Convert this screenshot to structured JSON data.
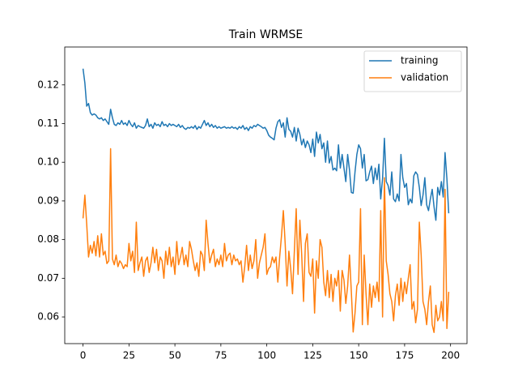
{
  "chart_data": {
    "type": "line",
    "title": "Train WRMSE",
    "x": [
      0,
      1,
      2,
      3,
      4,
      5,
      6,
      7,
      8,
      9,
      10,
      11,
      12,
      13,
      14,
      15,
      16,
      17,
      18,
      19,
      20,
      21,
      22,
      23,
      24,
      25,
      26,
      27,
      28,
      29,
      30,
      31,
      32,
      33,
      34,
      35,
      36,
      37,
      38,
      39,
      40,
      41,
      42,
      43,
      44,
      45,
      46,
      47,
      48,
      49,
      50,
      51,
      52,
      53,
      54,
      55,
      56,
      57,
      58,
      59,
      60,
      61,
      62,
      63,
      64,
      65,
      66,
      67,
      68,
      69,
      70,
      71,
      72,
      73,
      74,
      75,
      76,
      77,
      78,
      79,
      80,
      81,
      82,
      83,
      84,
      85,
      86,
      87,
      88,
      89,
      90,
      91,
      92,
      93,
      94,
      95,
      96,
      97,
      98,
      99,
      100,
      101,
      102,
      103,
      104,
      105,
      106,
      107,
      108,
      109,
      110,
      111,
      112,
      113,
      114,
      115,
      116,
      117,
      118,
      119,
      120,
      121,
      122,
      123,
      124,
      125,
      126,
      127,
      128,
      129,
      130,
      131,
      132,
      133,
      134,
      135,
      136,
      137,
      138,
      139,
      140,
      141,
      142,
      143,
      144,
      145,
      146,
      147,
      148,
      149,
      150,
      151,
      152,
      153,
      154,
      155,
      156,
      157,
      158,
      159,
      160,
      161,
      162,
      163,
      164,
      165,
      166,
      167,
      168,
      169,
      170,
      171,
      172,
      173,
      174,
      175,
      176,
      177,
      178,
      179,
      180,
      181,
      182,
      183,
      184,
      185,
      186,
      187,
      188,
      189,
      190,
      191,
      192,
      193,
      194,
      195,
      196,
      197,
      198,
      199
    ],
    "series": [
      {
        "name": "training",
        "color": "#1f77b4",
        "values": [
          0.1242,
          0.1205,
          0.1145,
          0.1152,
          0.1128,
          0.1122,
          0.1125,
          0.1122,
          0.1115,
          0.1112,
          0.1115,
          0.1108,
          0.1112,
          0.1105,
          0.1098,
          0.1137,
          0.1115,
          0.1098,
          0.1095,
          0.1102,
          0.1098,
          0.1108,
          0.1098,
          0.1102,
          0.1095,
          0.1108,
          0.1098,
          0.1092,
          0.1102,
          0.1088,
          0.1095,
          0.1092,
          0.109,
          0.1088,
          0.1095,
          0.1112,
          0.1092,
          0.1098,
          0.1088,
          0.1102,
          0.1095,
          0.1098,
          0.1092,
          0.1105,
          0.1095,
          0.1098,
          0.1092,
          0.11,
          0.1095,
          0.1098,
          0.1095,
          0.1092,
          0.1098,
          0.109,
          0.1095,
          0.1088,
          0.1085,
          0.109,
          0.1088,
          0.1092,
          0.1088,
          0.1095,
          0.1085,
          0.1092,
          0.1088,
          0.1098,
          0.1108,
          0.1095,
          0.1102,
          0.1092,
          0.1098,
          0.109,
          0.1095,
          0.1088,
          0.1092,
          0.1088,
          0.109,
          0.1092,
          0.1088,
          0.109,
          0.1088,
          0.1092,
          0.1088,
          0.109,
          0.1085,
          0.1092,
          0.1088,
          0.1095,
          0.1085,
          0.109,
          0.1082,
          0.1092,
          0.1088,
          0.1095,
          0.1092,
          0.1098,
          0.1095,
          0.1092,
          0.1088,
          0.109,
          0.1082,
          0.107,
          0.1065,
          0.1062,
          0.1058,
          0.1088,
          0.1105,
          0.111,
          0.109,
          0.1102,
          0.1065,
          0.1115,
          0.1085,
          0.108,
          0.1065,
          0.109,
          0.1055,
          0.1088,
          0.1072,
          0.1045,
          0.106,
          0.1038,
          0.1055,
          0.1045,
          0.1025,
          0.106,
          0.1015,
          0.1078,
          0.105,
          0.1072,
          0.1035,
          0.105,
          0.1,
          0.1055,
          0.0998,
          0.1015,
          0.098,
          0.0985,
          0.0978,
          0.1045,
          0.0985,
          0.102,
          0.0985,
          0.095,
          0.102,
          0.098,
          0.0922,
          0.092,
          0.0975,
          0.102,
          0.1045,
          0.1035,
          0.0985,
          0.102,
          0.0952,
          0.0955,
          0.0975,
          0.099,
          0.0945,
          0.0985,
          0.0955,
          0.0995,
          0.0905,
          0.0958,
          0.1062,
          0.095,
          0.094,
          0.0915,
          0.0975,
          0.0905,
          0.0898,
          0.0918,
          0.09,
          0.102,
          0.096,
          0.0935,
          0.0945,
          0.089,
          0.0905,
          0.0895,
          0.0965,
          0.0975,
          0.0968,
          0.0935,
          0.0888,
          0.0915,
          0.096,
          0.089,
          0.0875,
          0.0905,
          0.093,
          0.0885,
          0.085,
          0.0935,
          0.0915,
          0.095,
          0.091,
          0.1025,
          0.0958,
          0.0868
        ]
      },
      {
        "name": "validation",
        "color": "#ff7f0e",
        "values": [
          0.0855,
          0.0915,
          0.084,
          0.0755,
          0.0785,
          0.0765,
          0.0795,
          0.0758,
          0.081,
          0.0755,
          0.0815,
          0.076,
          0.077,
          0.0738,
          0.0745,
          0.1035,
          0.075,
          0.0735,
          0.076,
          0.073,
          0.0745,
          0.0738,
          0.0725,
          0.0735,
          0.073,
          0.079,
          0.0745,
          0.077,
          0.0715,
          0.0845,
          0.072,
          0.074,
          0.0755,
          0.0705,
          0.0745,
          0.0755,
          0.0715,
          0.074,
          0.078,
          0.074,
          0.0775,
          0.072,
          0.0755,
          0.0745,
          0.07,
          0.077,
          0.0735,
          0.078,
          0.073,
          0.0755,
          0.071,
          0.0795,
          0.0735,
          0.0755,
          0.078,
          0.0735,
          0.076,
          0.073,
          0.0795,
          0.0775,
          0.0745,
          0.072,
          0.074,
          0.0705,
          0.077,
          0.076,
          0.072,
          0.085,
          0.079,
          0.074,
          0.076,
          0.0775,
          0.073,
          0.075,
          0.0735,
          0.076,
          0.073,
          0.079,
          0.0745,
          0.076,
          0.0765,
          0.0735,
          0.076,
          0.0745,
          0.075,
          0.0735,
          0.0745,
          0.069,
          0.073,
          0.0785,
          0.072,
          0.076,
          0.0725,
          0.0745,
          0.08,
          0.07,
          0.074,
          0.076,
          0.078,
          0.0815,
          0.071,
          0.0725,
          0.073,
          0.0755,
          0.074,
          0.0755,
          0.069,
          0.0755,
          0.081,
          0.0875,
          0.079,
          0.068,
          0.077,
          0.0725,
          0.066,
          0.077,
          0.088,
          0.071,
          0.085,
          0.076,
          0.064,
          0.079,
          0.0815,
          0.0715,
          0.0705,
          0.075,
          0.061,
          0.0745,
          0.07,
          0.08,
          0.078,
          0.069,
          0.0655,
          0.072,
          0.065,
          0.071,
          0.064,
          0.07,
          0.068,
          0.072,
          0.0615,
          0.072,
          0.0695,
          0.0635,
          0.068,
          0.076,
          0.0665,
          0.0561,
          0.061,
          0.068,
          0.069,
          0.088,
          0.058,
          0.076,
          0.066,
          0.058,
          0.0685,
          0.0625,
          0.068,
          0.065,
          0.069,
          0.064,
          0.0875,
          0.06,
          0.096,
          0.0745,
          0.071,
          0.066,
          0.064,
          0.059,
          0.0655,
          0.0685,
          0.063,
          0.07,
          0.064,
          0.069,
          0.066,
          0.07,
          0.0735,
          0.062,
          0.064,
          0.0585,
          0.062,
          0.0845,
          0.076,
          0.064,
          0.062,
          0.058,
          0.064,
          0.068,
          0.058,
          0.056,
          0.063,
          0.059,
          0.06,
          0.064,
          0.059,
          0.093,
          0.057,
          0.0665
        ]
      }
    ],
    "xlim": [
      -9.95,
      208.95
    ],
    "ylim": [
      0.0531,
      0.1298
    ],
    "xticks": [
      0,
      25,
      50,
      75,
      100,
      125,
      150,
      175,
      200
    ],
    "yticks": [
      0.06,
      0.07,
      0.08,
      0.09,
      {
        "value": 0.1,
        "label": "0.10"
      },
      0.11,
      0.12
    ],
    "legend": "upper right",
    "grid": false
  }
}
